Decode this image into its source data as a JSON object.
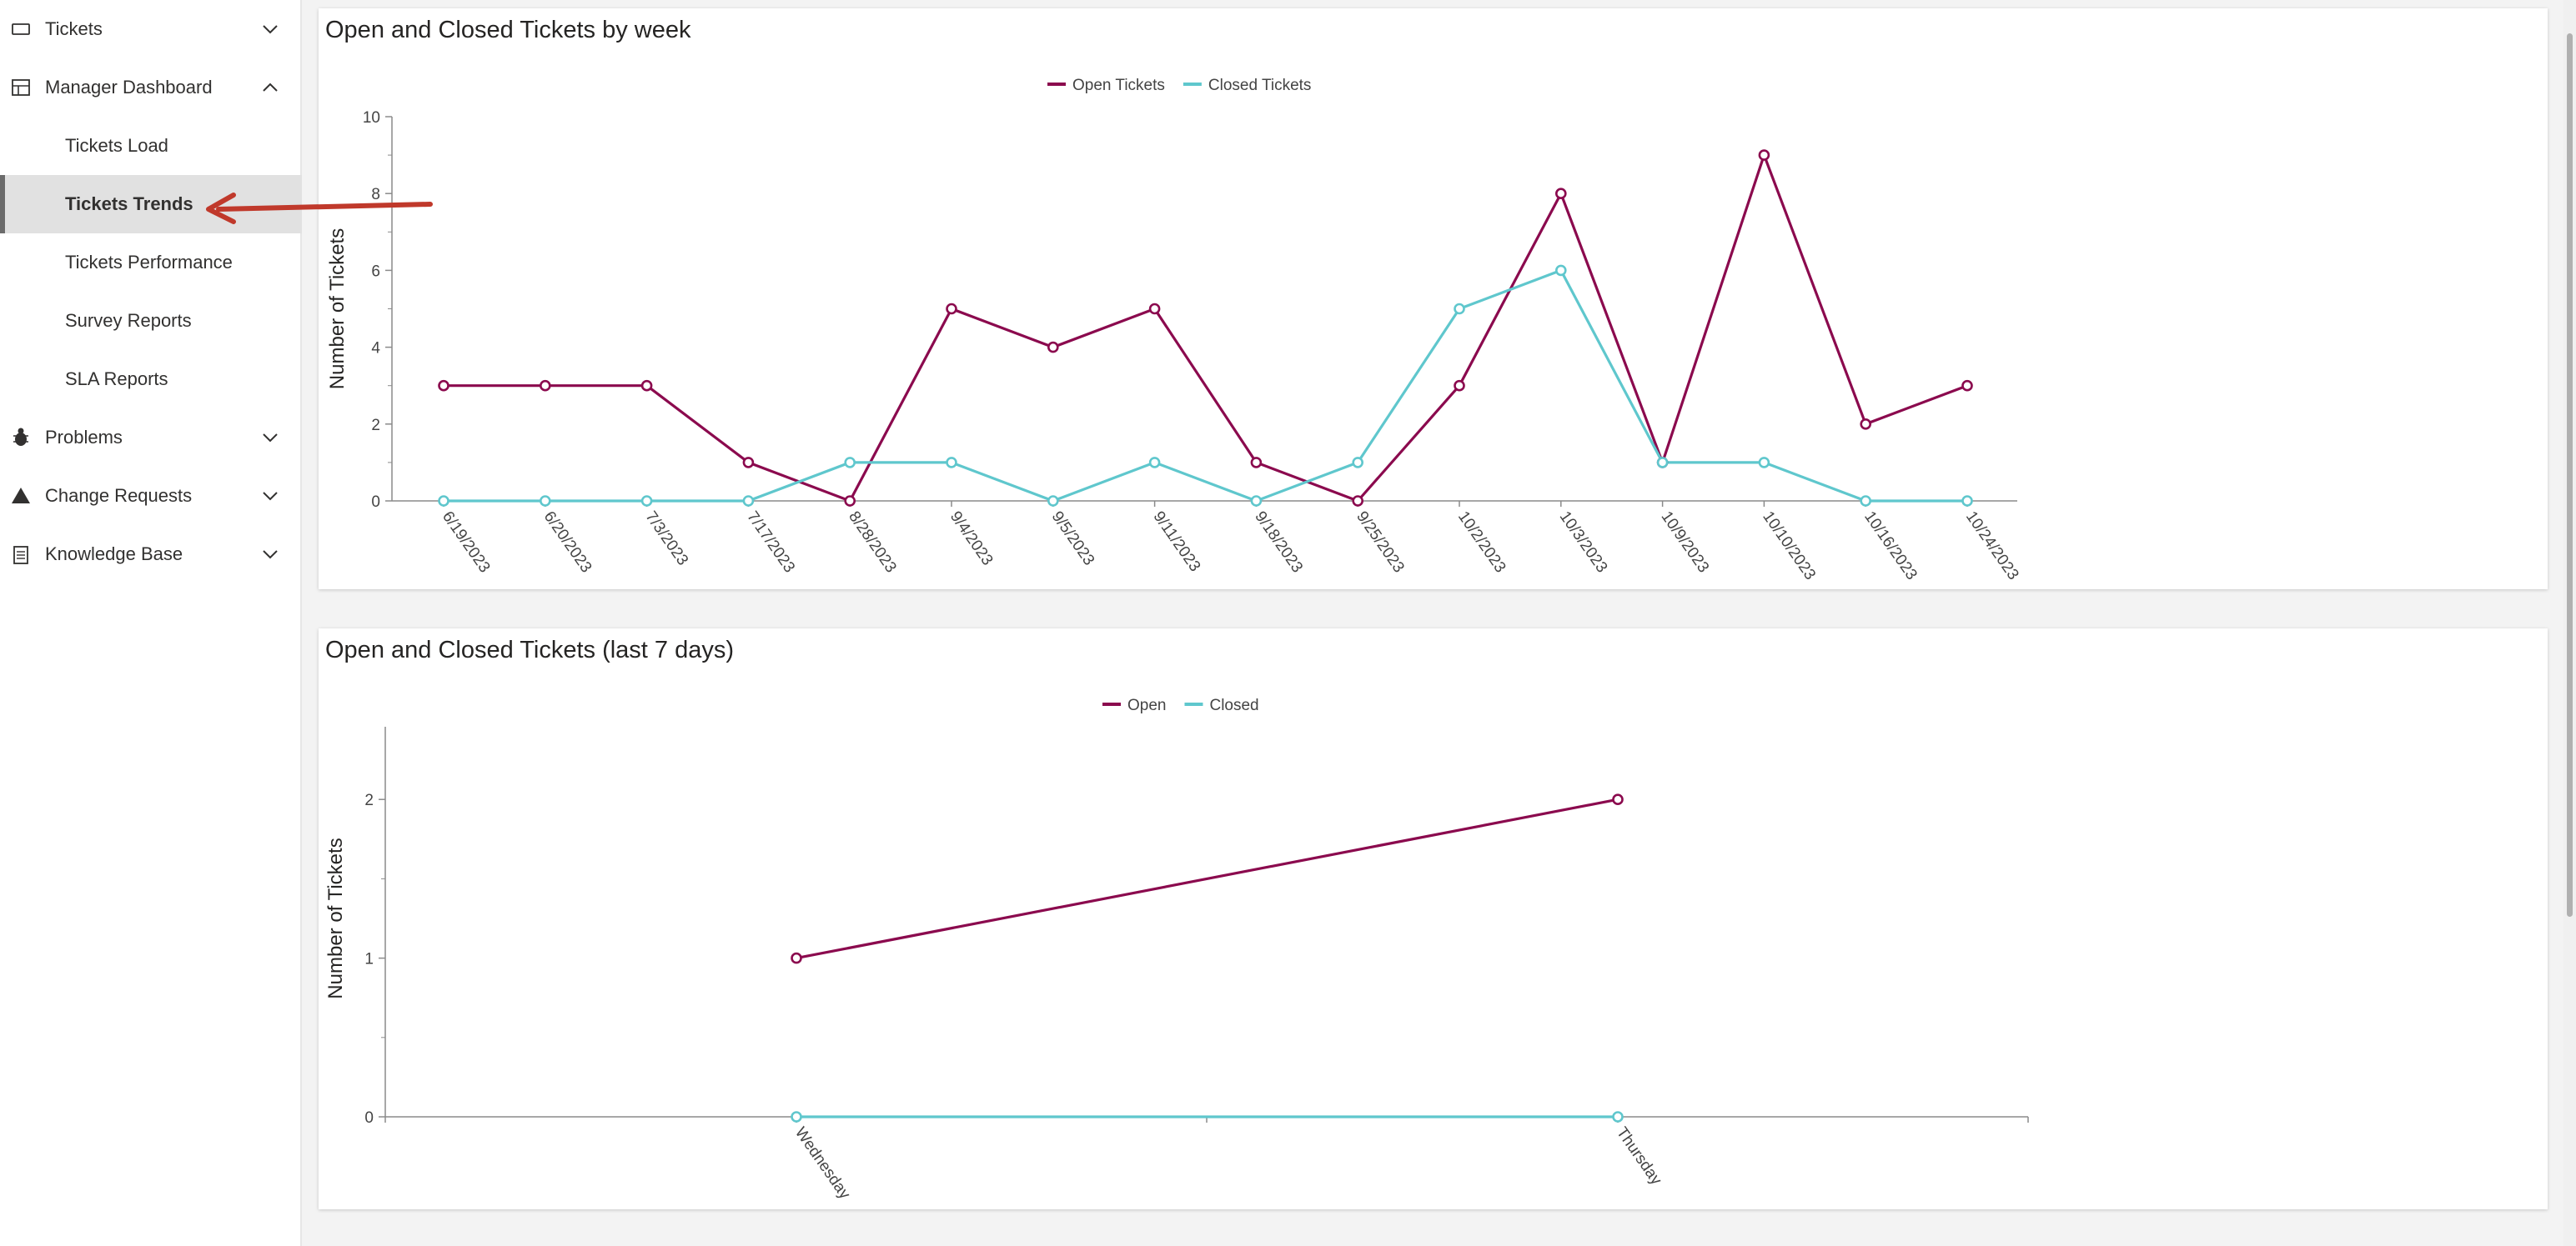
{
  "colors": {
    "open_series": "#8b0a4e",
    "closed_series": "#5fc7cd",
    "axis": "#8a8a8a",
    "annotation_arrow": "#c0392b"
  },
  "sidebar": {
    "items": [
      {
        "label": "Tickets",
        "icon": "ticket-icon",
        "chevron": "chevron-down-icon"
      },
      {
        "label": "Manager Dashboard",
        "icon": "dashboard-icon",
        "chevron": "chevron-up-icon"
      },
      {
        "label": "Tickets Load"
      },
      {
        "label": "Tickets Trends",
        "active": true
      },
      {
        "label": "Tickets Performance"
      },
      {
        "label": "Survey Reports"
      },
      {
        "label": "SLA Reports"
      },
      {
        "label": "Problems",
        "icon": "bug-icon",
        "chevron": "chevron-down-icon"
      },
      {
        "label": "Change Requests",
        "icon": "warning-triangle-icon",
        "chevron": "chevron-down-icon"
      },
      {
        "label": "Knowledge Base",
        "icon": "document-icon",
        "chevron": "chevron-down-icon"
      }
    ]
  },
  "chart_data": [
    {
      "type": "line",
      "title": "Open and Closed Tickets by week",
      "xlabel": "",
      "ylabel": "Number of Tickets",
      "legend_position": "top-center",
      "ylim": [
        0,
        10
      ],
      "y_ticks": [
        0,
        2,
        4,
        6,
        8,
        10
      ],
      "grid": false,
      "categories": [
        "6/19/2023",
        "6/20/2023",
        "7/3/2023",
        "7/17/2023",
        "8/28/2023",
        "9/4/2023",
        "9/5/2023",
        "9/11/2023",
        "9/18/2023",
        "9/25/2023",
        "10/2/2023",
        "10/3/2023",
        "10/9/2023",
        "10/10/2023",
        "10/16/2023",
        "10/24/2023"
      ],
      "series": [
        {
          "name": "Open Tickets",
          "values": [
            3,
            3,
            3,
            1,
            0,
            5,
            4,
            5,
            1,
            0,
            3,
            8,
            1,
            9,
            2,
            3
          ]
        },
        {
          "name": "Closed Tickets",
          "values": [
            0,
            0,
            0,
            0,
            1,
            1,
            0,
            1,
            0,
            1,
            5,
            6,
            1,
            1,
            0,
            0
          ]
        }
      ]
    },
    {
      "type": "line",
      "title": "Open and Closed Tickets (last 7 days)",
      "xlabel": "",
      "ylabel": "Number of Tickets",
      "legend_position": "top-center",
      "ylim": [
        0,
        2.5
      ],
      "y_ticks": [
        0,
        1,
        2
      ],
      "grid": false,
      "categories": [
        "Wednesday",
        "Thursday"
      ],
      "series": [
        {
          "name": "Open",
          "values": [
            1,
            2
          ]
        },
        {
          "name": "Closed",
          "values": [
            0,
            0
          ]
        }
      ]
    }
  ]
}
